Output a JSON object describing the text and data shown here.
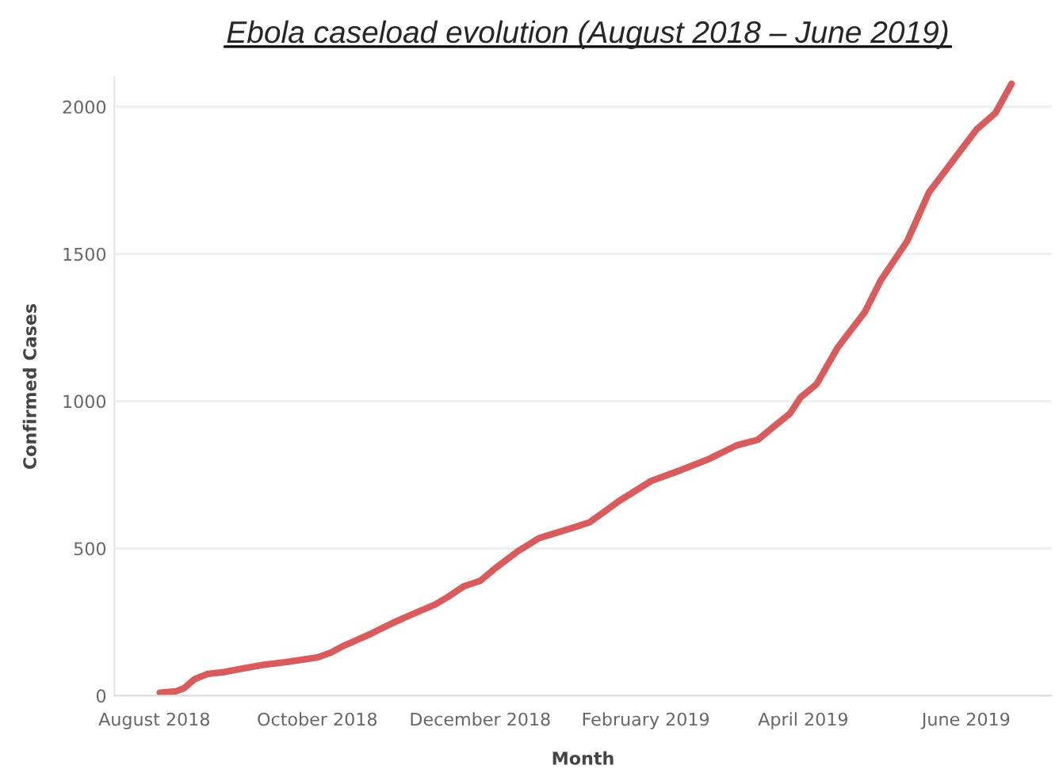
{
  "chart_data": {
    "type": "line",
    "title": "Ebola caseload evolution (August 2018 – June 2019)",
    "xlabel": "Month",
    "ylabel": "Confirmed Cases",
    "series": [
      {
        "color": "#d95b5b",
        "x": [
          "2018-08-03",
          "2018-08-09",
          "2018-08-12",
          "2018-08-16",
          "2018-08-21",
          "2018-08-27",
          "2018-09-03",
          "2018-09-11",
          "2018-09-19",
          "2018-10-01",
          "2018-10-06",
          "2018-10-11",
          "2018-10-21",
          "2018-10-29",
          "2018-11-07",
          "2018-11-14",
          "2018-11-19",
          "2018-11-25",
          "2018-12-01",
          "2018-12-07",
          "2018-12-15",
          "2018-12-23",
          "2019-01-06",
          "2019-01-11",
          "2019-01-22",
          "2019-02-03",
          "2019-02-15",
          "2019-02-25",
          "2019-03-07",
          "2019-03-15",
          "2019-03-21",
          "2019-03-27",
          "2019-03-31",
          "2019-04-06",
          "2019-04-14",
          "2019-04-24",
          "2019-04-30",
          "2019-05-10",
          "2019-05-18",
          "2019-05-24",
          "2019-05-30",
          "2019-06-05",
          "2019-06-12",
          "2019-06-18"
        ],
        "values": [
          10,
          15,
          25,
          56,
          74,
          80,
          92,
          105,
          114,
          130,
          146,
          170,
          210,
          246,
          282,
          309,
          336,
          372,
          390,
          435,
          490,
          535,
          574,
          589,
          661,
          729,
          769,
          805,
          850,
          869,
          914,
          958,
          1013,
          1058,
          1184,
          1302,
          1410,
          1545,
          1708,
          1780,
          1852,
          1924,
          1979,
          2078
        ]
      }
    ],
    "xlim": [
      "2018-07-17",
      "2019-07-03"
    ],
    "xticks": [
      {
        "value": "2018-08-01",
        "label": "August 2018"
      },
      {
        "value": "2018-10-01",
        "label": "October 2018"
      },
      {
        "value": "2018-12-01",
        "label": "December 2018"
      },
      {
        "value": "2019-02-01",
        "label": "February 2019"
      },
      {
        "value": "2019-04-01",
        "label": "April 2019"
      },
      {
        "value": "2019-06-01",
        "label": "June 2019"
      }
    ],
    "ylim": [
      0,
      2100
    ],
    "yticks": [
      0,
      500,
      1000,
      1500,
      2000
    ],
    "grid": "y",
    "line_style": "solid",
    "marker": "none"
  }
}
